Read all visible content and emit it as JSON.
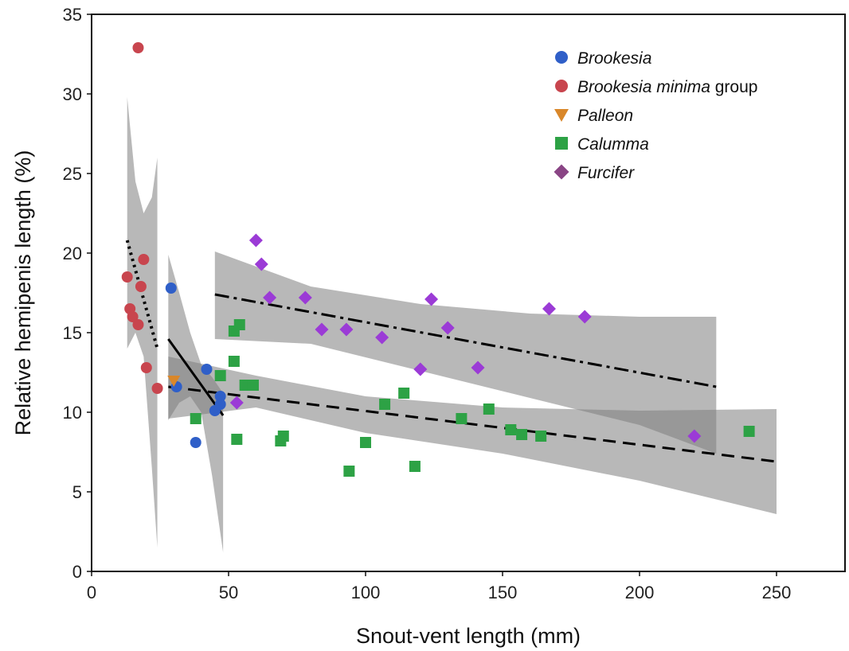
{
  "chart_data": {
    "type": "scatter",
    "xlabel": "Snout-vent length (mm)",
    "ylabel": "Relative hemipenis length (%)",
    "xlim": [
      0,
      275
    ],
    "ylim": [
      0,
      35
    ],
    "x_ticks": [
      0,
      50,
      100,
      150,
      200,
      250
    ],
    "y_ticks": [
      0,
      5,
      10,
      15,
      20,
      25,
      30,
      35
    ],
    "legend_position": "top-right",
    "series": [
      {
        "legend_italic": "Brookesia",
        "legend_plain": "",
        "marker": "circle",
        "color": "#2f5fc8",
        "points": [
          [
            29,
            17.8
          ],
          [
            31,
            11.6
          ],
          [
            38,
            8.1
          ],
          [
            42,
            12.7
          ],
          [
            45,
            10.1
          ],
          [
            47,
            11.0
          ],
          [
            47,
            10.5
          ]
        ]
      },
      {
        "legend_italic": "Brookesia minima",
        "legend_plain": " group",
        "marker": "circle",
        "color": "#c8454e",
        "points": [
          [
            17,
            32.9
          ],
          [
            13,
            18.5
          ],
          [
            14,
            16.5
          ],
          [
            15,
            16.0
          ],
          [
            17,
            15.5
          ],
          [
            18,
            17.9
          ],
          [
            19,
            19.6
          ],
          [
            20,
            12.8
          ],
          [
            24,
            11.5
          ]
        ]
      },
      {
        "legend_italic": "Palleon",
        "legend_plain": "",
        "marker": "triangle-down",
        "color": "#d9872a",
        "points": [
          [
            30,
            12.0
          ]
        ]
      },
      {
        "legend_italic": "Calumma",
        "legend_plain": "",
        "marker": "square",
        "color": "#2da245",
        "points": [
          [
            38,
            9.6
          ],
          [
            47,
            12.3
          ],
          [
            52,
            15.1
          ],
          [
            52,
            13.2
          ],
          [
            53,
            8.3
          ],
          [
            54,
            15.5
          ],
          [
            56,
            11.7
          ],
          [
            59,
            11.7
          ],
          [
            69,
            8.2
          ],
          [
            70,
            8.5
          ],
          [
            94,
            6.3
          ],
          [
            100,
            8.1
          ],
          [
            107,
            10.5
          ],
          [
            114,
            11.2
          ],
          [
            118,
            6.6
          ],
          [
            135,
            9.6
          ],
          [
            145,
            10.2
          ],
          [
            153,
            8.9
          ],
          [
            157,
            8.6
          ],
          [
            164,
            8.5
          ],
          [
            240,
            8.8
          ]
        ]
      },
      {
        "legend_italic": "Furcifer",
        "legend_plain": "",
        "marker": "diamond",
        "color": "#9b3bd6",
        "legend_color": "#8a4585",
        "points": [
          [
            53,
            10.6
          ],
          [
            60,
            20.8
          ],
          [
            62,
            19.3
          ],
          [
            65,
            17.2
          ],
          [
            78,
            17.2
          ],
          [
            84,
            15.2
          ],
          [
            93,
            15.2
          ],
          [
            106,
            14.7
          ],
          [
            120,
            12.7
          ],
          [
            124,
            17.1
          ],
          [
            130,
            15.3
          ],
          [
            141,
            12.8
          ],
          [
            167,
            16.5
          ],
          [
            180,
            16.0
          ],
          [
            220,
            8.5
          ]
        ]
      }
    ],
    "fits": [
      {
        "style": "dotted",
        "x": [
          13,
          24
        ],
        "y": [
          20.8,
          14.0
        ]
      },
      {
        "style": "solid",
        "x": [
          28,
          48
        ],
        "y": [
          14.6,
          9.8
        ]
      },
      {
        "style": "dashed",
        "x": [
          28,
          250
        ],
        "y": [
          11.6,
          6.9
        ]
      },
      {
        "style": "dash-dot",
        "x": [
          45,
          228
        ],
        "y": [
          17.4,
          11.6
        ]
      }
    ],
    "bands": [
      {
        "x": [
          13,
          16,
          19,
          22,
          24
        ],
        "lower": [
          14.0,
          15.0,
          13.5,
          6.5,
          1.5
        ],
        "upper": [
          29.8,
          24.5,
          22.5,
          23.5,
          26.0
        ]
      },
      {
        "x": [
          28,
          32,
          36,
          40,
          44,
          48
        ],
        "lower": [
          9.5,
          10.6,
          11.0,
          10.0,
          6.0,
          1.2
        ],
        "upper": [
          19.9,
          17.5,
          15.0,
          13.0,
          12.2,
          11.2
        ]
      },
      {
        "x": [
          28,
          60,
          100,
          150,
          200,
          250
        ],
        "lower": [
          9.6,
          10.3,
          8.7,
          7.4,
          5.7,
          3.6
        ],
        "upper": [
          13.5,
          12.3,
          11.0,
          10.3,
          10.1,
          10.2
        ]
      },
      {
        "x": [
          45,
          80,
          120,
          160,
          200,
          228
        ],
        "lower": [
          14.6,
          14.3,
          12.6,
          10.9,
          9.2,
          7.4
        ],
        "upper": [
          20.1,
          17.9,
          16.8,
          16.2,
          16.0,
          16.0
        ]
      }
    ]
  }
}
